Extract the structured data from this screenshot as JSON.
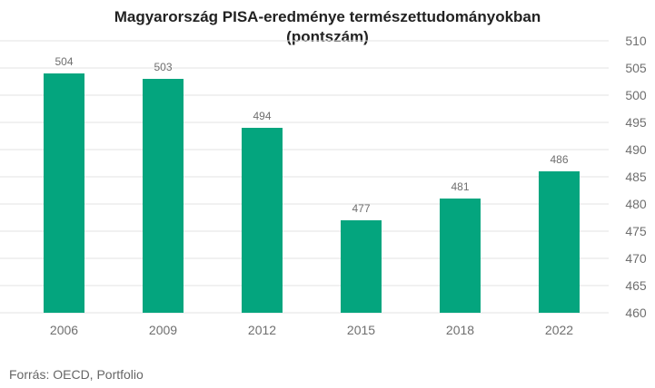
{
  "chart_data": {
    "type": "bar",
    "title_line1": "Magyarország PISA-eredménye természettudományokban",
    "title_line2": "(pontszám)",
    "categories": [
      "2006",
      "2009",
      "2012",
      "2015",
      "2018",
      "2022"
    ],
    "values": [
      504,
      503,
      494,
      477,
      481,
      486
    ],
    "value_labels": [
      "504",
      "503",
      "494",
      "477",
      "481",
      "486"
    ],
    "yticks": [
      "510",
      "505",
      "500",
      "495",
      "490",
      "485",
      "480",
      "475",
      "470",
      "465",
      "460"
    ],
    "ylim": [
      460,
      510
    ],
    "yaxis_position": "right",
    "grid": true,
    "bar_color": "#04a57e",
    "grid_color": "#e3e3e3",
    "label_color": "#6f6f6f"
  },
  "source": "Forrás: OECD, Portfolio"
}
